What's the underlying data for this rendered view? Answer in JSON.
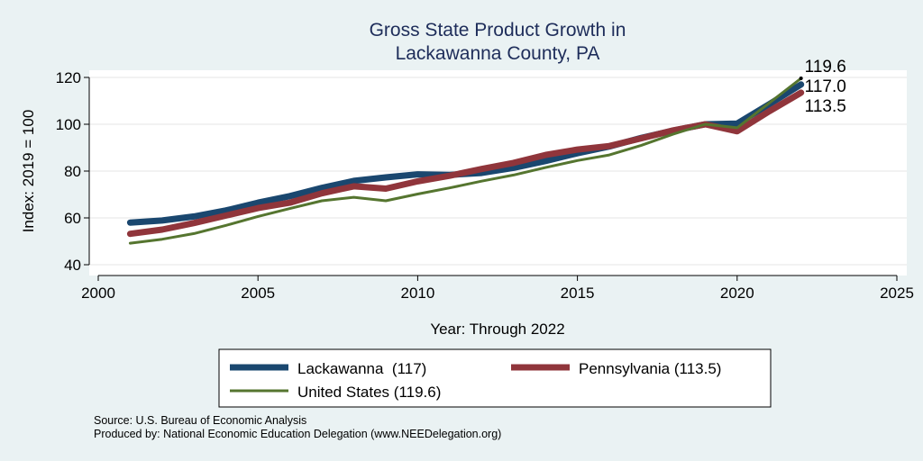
{
  "chart_data": {
    "type": "line",
    "title": [
      "Gross State Product Growth in",
      "Lackawanna County, PA"
    ],
    "xlabel": "Year: Through 2022",
    "ylabel": "Index: 2019 = 100",
    "xlim": [
      2000,
      2025
    ],
    "ylim": [
      40,
      120
    ],
    "xticks": [
      2000,
      2005,
      2010,
      2015,
      2020,
      2025
    ],
    "yticks": [
      40,
      60,
      80,
      100,
      120
    ],
    "grid": true,
    "legend_position": "bottom",
    "series": [
      {
        "name": "Lackawanna  (117)",
        "color": "#1a476f",
        "x": [
          2001,
          2002,
          2003,
          2004,
          2005,
          2006,
          2007,
          2008,
          2009,
          2010,
          2011,
          2012,
          2013,
          2014,
          2015,
          2016,
          2017,
          2018,
          2019,
          2020,
          2021,
          2022
        ],
        "values": [
          58.0,
          58.9,
          60.6,
          63.2,
          66.5,
          69.3,
          72.8,
          75.8,
          77.3,
          78.6,
          78.4,
          79.2,
          81.4,
          84.3,
          87.6,
          90.5,
          94.2,
          97.3,
          100.0,
          100.3,
          108.5,
          117.0
        ]
      },
      {
        "name": "Pennsylvania (113.5)",
        "color": "#90353b",
        "x": [
          2001,
          2002,
          2003,
          2004,
          2005,
          2006,
          2007,
          2008,
          2009,
          2010,
          2011,
          2012,
          2013,
          2014,
          2015,
          2016,
          2017,
          2018,
          2019,
          2020,
          2021,
          2022
        ],
        "values": [
          53.2,
          55.0,
          57.8,
          61.0,
          64.2,
          66.5,
          70.5,
          73.5,
          72.5,
          75.6,
          78.0,
          80.9,
          83.5,
          86.9,
          89.2,
          90.7,
          94.0,
          97.4,
          100.0,
          97.0,
          105.5,
          113.5
        ]
      },
      {
        "name": "United States (119.6)",
        "color": "#55752f",
        "x": [
          2001,
          2002,
          2003,
          2004,
          2005,
          2006,
          2007,
          2008,
          2009,
          2010,
          2011,
          2012,
          2013,
          2014,
          2015,
          2016,
          2017,
          2018,
          2019,
          2020,
          2021,
          2022
        ],
        "values": [
          49.2,
          50.9,
          53.3,
          56.8,
          60.6,
          64.0,
          67.3,
          68.8,
          67.3,
          70.2,
          72.8,
          75.7,
          78.3,
          81.5,
          84.5,
          86.9,
          91.0,
          95.8,
          100.0,
          98.5,
          109.0,
          119.6
        ]
      }
    ],
    "end_labels": [
      {
        "text": "119.6",
        "value": 119.6
      },
      {
        "text": "117.0",
        "value": 117.0
      },
      {
        "text": "113.5",
        "value": 113.5
      }
    ]
  },
  "notes": {
    "source": "Source: U.S. Bureau of Economic Analysis",
    "produced": "Produced by: National Economic Education Delegation (www.NEEDelegation.org)"
  }
}
